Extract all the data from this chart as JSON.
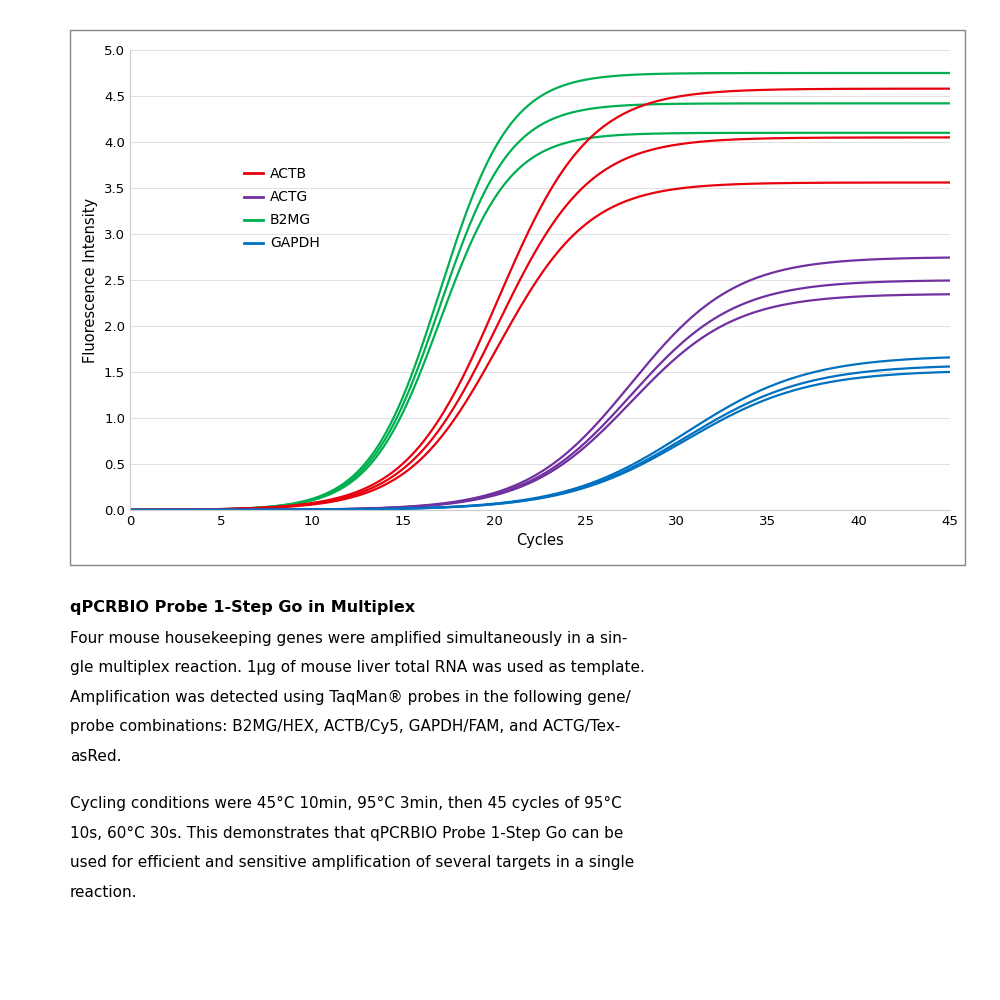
{
  "title_bold": "qPCRBIO Probe 1-Step Go in Multiplex",
  "para1_lines": [
    "Four mouse housekeeping genes were amplified simultaneously in a sin-",
    "gle multiplex reaction. 1μg of mouse liver total RNA was used as template.",
    "Amplification was detected using TaqMan® probes in the following gene/",
    "probe combinations: B2MG/HEX, ACTB/Cy5, GAPDH/FAM, and ACTG/Tex-",
    "asRed."
  ],
  "para2_lines": [
    "Cycling conditions were 45°C 10min, 95°C 3min, then 45 cycles of 95°C",
    "10s, 60°C 30s. This demonstrates that qPCRBIO Probe 1-Step Go can be",
    "used for efficient and sensitive amplification of several targets in a single",
    "reaction."
  ],
  "xlabel": "Cycles",
  "ylabel": "Fluorescence Intensity",
  "xlim": [
    0,
    45
  ],
  "ylim": [
    0,
    5
  ],
  "xticks": [
    0,
    5,
    10,
    15,
    20,
    25,
    30,
    35,
    40,
    45
  ],
  "yticks": [
    0,
    0.5,
    1,
    1.5,
    2,
    2.5,
    3,
    3.5,
    4,
    4.5,
    5
  ],
  "colors": {
    "ACTB": "#e8000d",
    "ACTG": "#7030a0",
    "B2MG": "#00b050",
    "GAPDH": "#0070c0"
  },
  "background_color": "#ffffff",
  "chart_box_color": "#888888",
  "b2mg_params": {
    "midpoint": 17.0,
    "steepness": 0.52,
    "plateaus": [
      4.75,
      4.42,
      4.1
    ]
  },
  "actb_params": {
    "midpoint": 20.2,
    "steepness": 0.4,
    "plateaus": [
      4.58,
      4.05,
      3.56
    ]
  },
  "actg_params": {
    "midpoint": 27.5,
    "steepness": 0.35,
    "plateaus": [
      2.75,
      2.5,
      2.35
    ]
  },
  "gapdh_params": {
    "midpoint": 30.5,
    "steepness": 0.3,
    "plateaus": [
      1.68,
      1.58,
      1.52
    ]
  }
}
